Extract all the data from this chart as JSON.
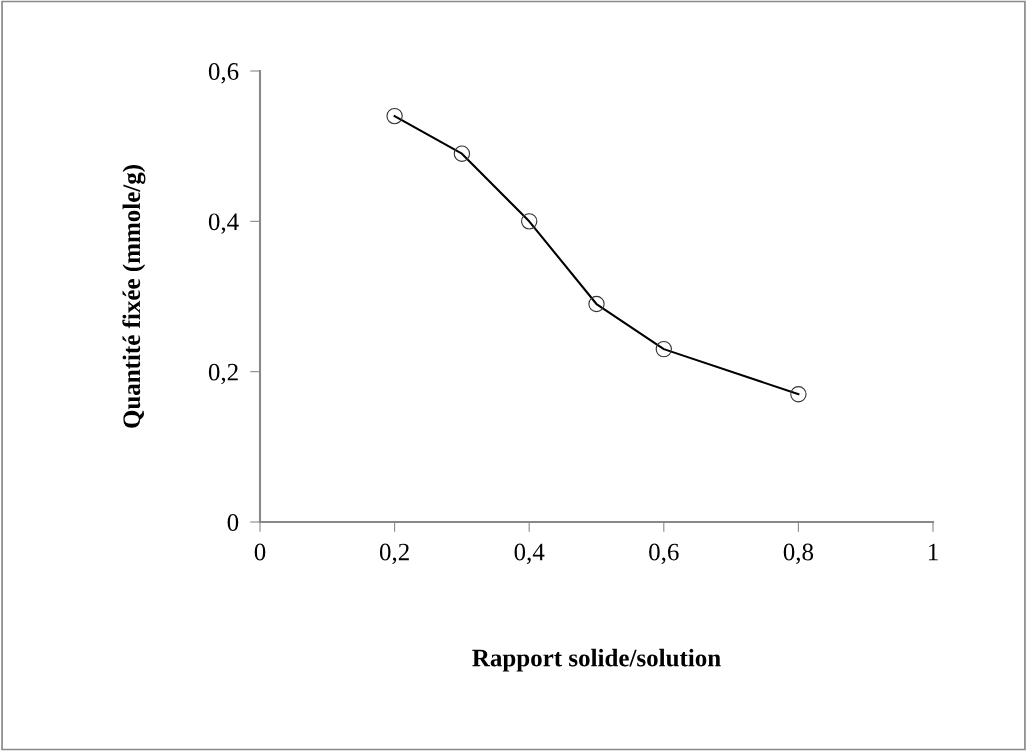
{
  "chart_data": {
    "type": "line",
    "xlabel": "Rapport solide/solution",
    "ylabel": "Quantité fixée (mmole/g)",
    "x": [
      0.2,
      0.3,
      0.4,
      0.5,
      0.6,
      0.8
    ],
    "series": [
      {
        "color": "#000000",
        "values": [
          0.54,
          0.49,
          0.4,
          0.29,
          0.23,
          0.17
        ]
      }
    ],
    "marker": "circle",
    "line_style": "solid",
    "grid": false,
    "legend": false,
    "xlim": [
      0,
      1
    ],
    "xticks": [
      {
        "value": 0,
        "label": "0"
      },
      {
        "value": 0.2,
        "label": "0,2"
      },
      {
        "value": 0.4,
        "label": "0,4"
      },
      {
        "value": 0.6,
        "label": "0,6"
      },
      {
        "value": 0.8,
        "label": "0,8"
      },
      {
        "value": 1,
        "label": "1"
      }
    ],
    "ylim": [
      0,
      0.6
    ],
    "yticks": [
      {
        "value": 0,
        "label": "0"
      },
      {
        "value": 0.2,
        "label": "0,2"
      },
      {
        "value": 0.4,
        "label": "0,4"
      },
      {
        "value": 0.6,
        "label": "0,6"
      }
    ]
  }
}
